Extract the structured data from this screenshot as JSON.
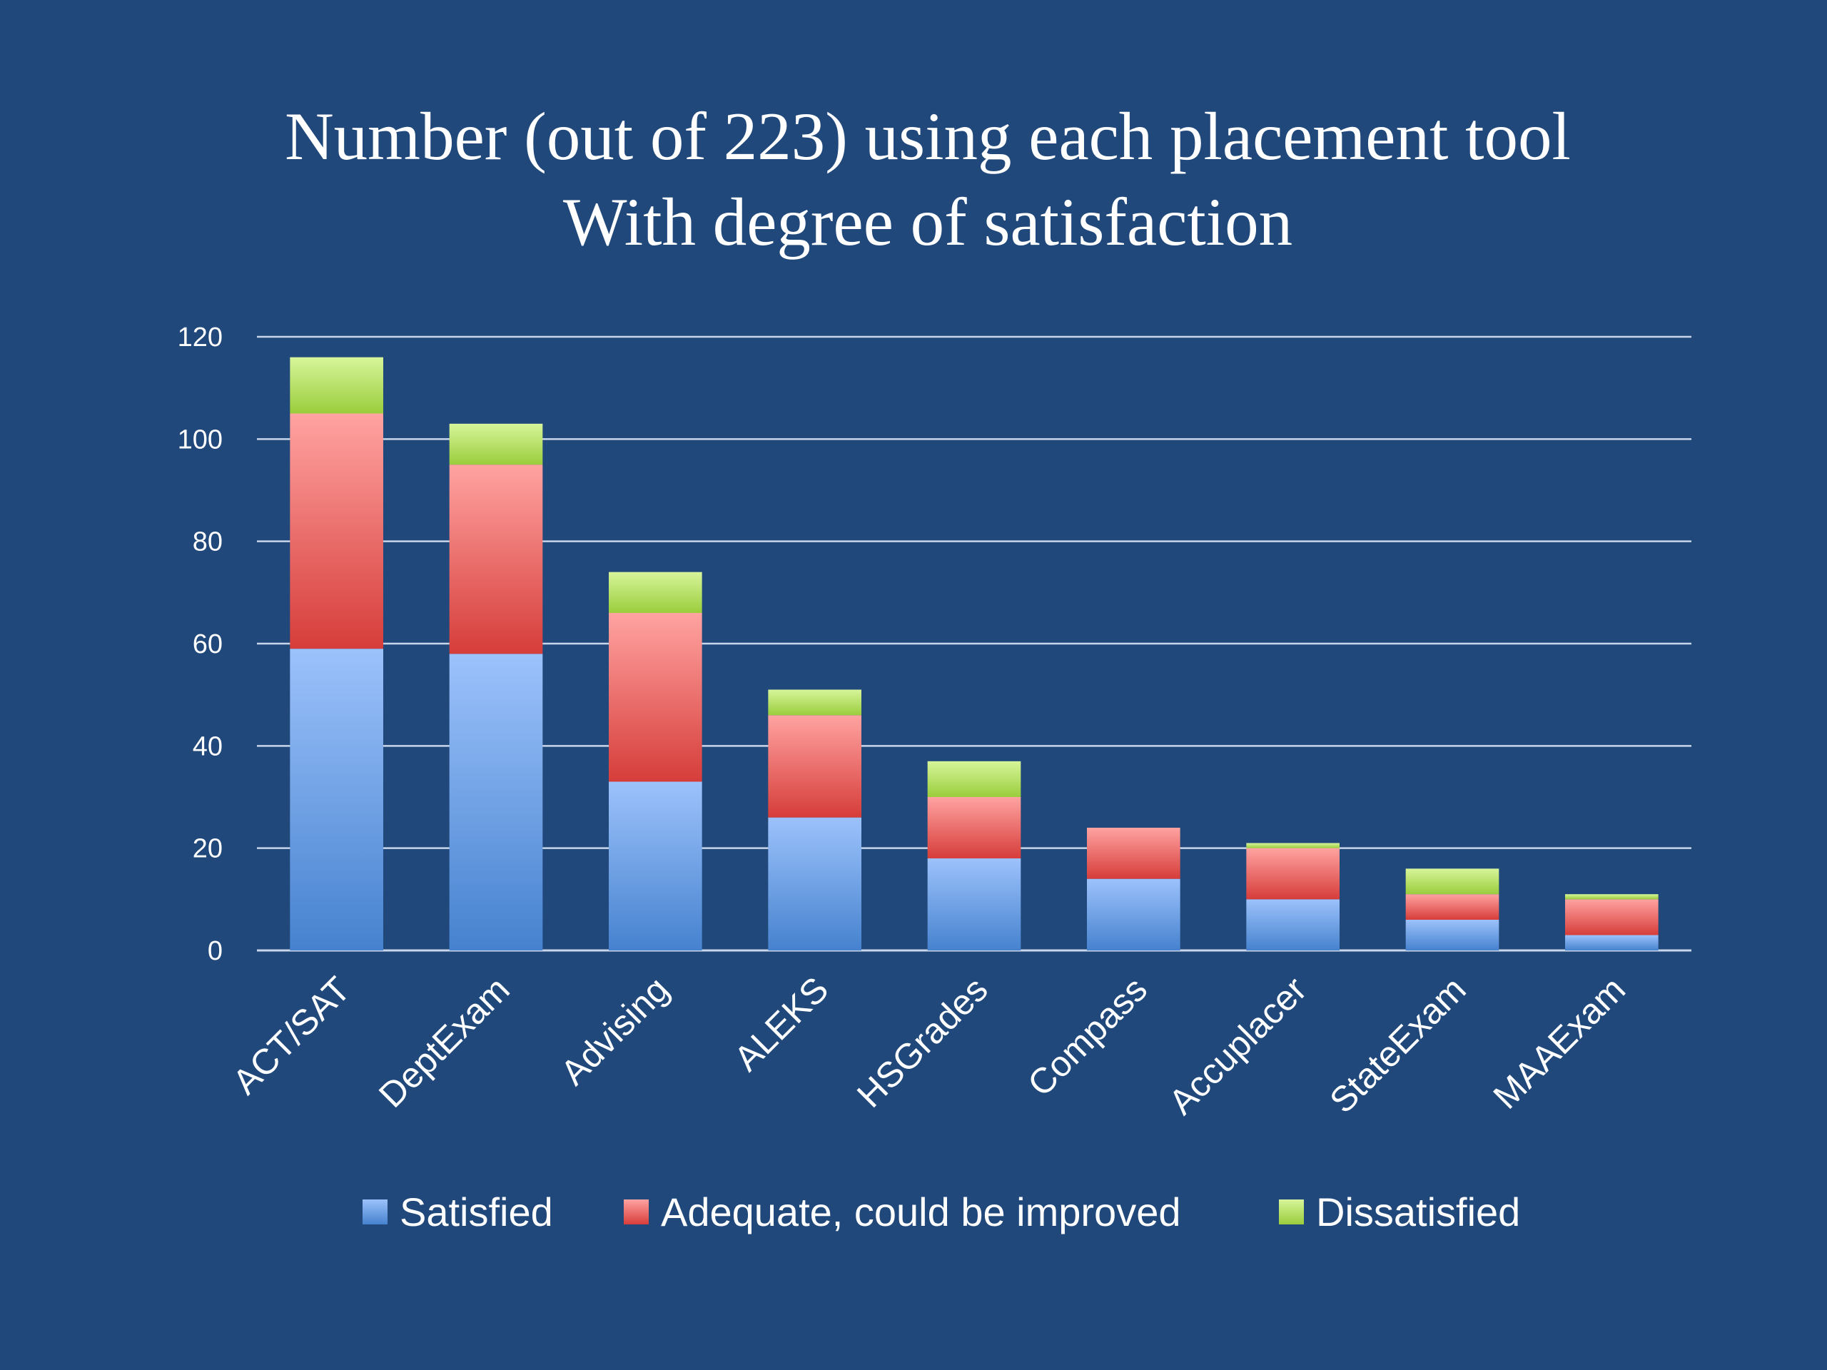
{
  "chart_data": {
    "type": "bar",
    "stacked": true,
    "title": [
      "Number (out of 223) using each placement tool",
      "With degree of satisfaction"
    ],
    "categories": [
      "ACT/SAT",
      "DeptExam",
      "Advising",
      "ALEKS",
      "HSGrades",
      "Compass",
      "Accuplacer",
      "StateExam",
      "MAAExam"
    ],
    "series": [
      {
        "name": "Satisfied",
        "values": [
          59,
          58,
          33,
          26,
          18,
          14,
          10,
          6,
          3
        ],
        "color_top": "#9cc2fb",
        "color_bottom": "#4682cf"
      },
      {
        "name": "Adequate, could be improved",
        "values": [
          46,
          37,
          33,
          20,
          12,
          10,
          10,
          5,
          7
        ],
        "color_top": "#ffa3a1",
        "color_bottom": "#d63d3a"
      },
      {
        "name": "Dissatisfied",
        "values": [
          11,
          8,
          8,
          5,
          7,
          0,
          1,
          5,
          1
        ],
        "color_top": "#d7f59a",
        "color_bottom": "#9acd3c"
      }
    ],
    "ylim": [
      0,
      120
    ],
    "yticks": [
      0,
      20,
      40,
      60,
      80,
      100,
      120
    ],
    "grid": true,
    "legend_position": "bottom",
    "xlabel": "",
    "ylabel": ""
  }
}
